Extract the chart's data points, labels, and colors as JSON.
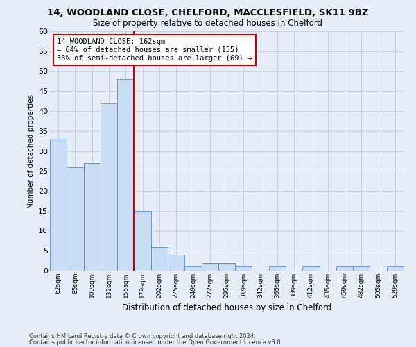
{
  "title1": "14, WOODLAND CLOSE, CHELFORD, MACCLESFIELD, SK11 9BZ",
  "title2": "Size of property relative to detached houses in Chelford",
  "xlabel": "Distribution of detached houses by size in Chelford",
  "ylabel": "Number of detached properties",
  "footer1": "Contains HM Land Registry data © Crown copyright and database right 2024.",
  "footer2": "Contains public sector information licensed under the Open Government Licence v3.0.",
  "annotation_line1": "14 WOODLAND CLOSE: 162sqm",
  "annotation_line2": "← 64% of detached houses are smaller (135)",
  "annotation_line3": "33% of semi-detached houses are larger (69) →",
  "bar_categories": [
    "62sqm",
    "85sqm",
    "109sqm",
    "132sqm",
    "155sqm",
    "179sqm",
    "202sqm",
    "225sqm",
    "249sqm",
    "272sqm",
    "295sqm",
    "319sqm",
    "342sqm",
    "365sqm",
    "389sqm",
    "412sqm",
    "435sqm",
    "459sqm",
    "482sqm",
    "505sqm",
    "529sqm"
  ],
  "bar_values": [
    33,
    26,
    27,
    42,
    48,
    15,
    6,
    4,
    1,
    2,
    2,
    1,
    0,
    1,
    0,
    1,
    0,
    1,
    1,
    0,
    1
  ],
  "bar_color": "#c9ddf5",
  "bar_edge_color": "#5b8bc9",
  "vline_color": "#cc0000",
  "vline_x": 4.5,
  "annotation_box_color": "#ffffff",
  "annotation_box_edge_color": "#cc0000",
  "grid_color": "#c8d4e8",
  "bg_color": "#e8eef8",
  "ylim": [
    0,
    60
  ],
  "yticks": [
    0,
    5,
    10,
    15,
    20,
    25,
    30,
    35,
    40,
    45,
    50,
    55,
    60
  ]
}
